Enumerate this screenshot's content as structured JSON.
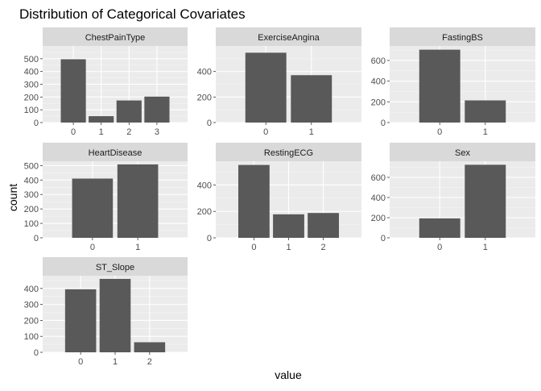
{
  "title": "Distribution of Categorical Covariates",
  "xlabel": "value",
  "ylabel": "count",
  "colors": {
    "bar": "#595959",
    "panel_bg": "#EBEBEB",
    "strip_bg": "#D9D9D9",
    "grid_major": "#FFFFFF",
    "grid_minor": "#F5F5F5",
    "text": "#4D4D4D",
    "title": "#000000"
  },
  "chart_data": [
    {
      "type": "bar",
      "title": "ChestPainType",
      "categories": [
        "0",
        "1",
        "2",
        "3"
      ],
      "values": [
        496,
        50,
        173,
        203
      ],
      "ylim": [
        0,
        600
      ],
      "yticks": [
        0,
        100,
        200,
        300,
        400,
        500
      ]
    },
    {
      "type": "bar",
      "title": "ExerciseAngina",
      "categories": [
        "0",
        "1"
      ],
      "values": [
        547,
        371
      ],
      "ylim": [
        0,
        600
      ],
      "yticks": [
        0,
        200,
        400
      ]
    },
    {
      "type": "bar",
      "title": "FastingBS",
      "categories": [
        "0",
        "1"
      ],
      "values": [
        704,
        214
      ],
      "ylim": [
        0,
        740
      ],
      "yticks": [
        0,
        200,
        400,
        600
      ]
    },
    {
      "type": "bar",
      "title": "HeartDisease",
      "categories": [
        "0",
        "1"
      ],
      "values": [
        410,
        508
      ],
      "ylim": [
        0,
        530
      ],
      "yticks": [
        0,
        100,
        200,
        300,
        400,
        500
      ]
    },
    {
      "type": "bar",
      "title": "RestingECG",
      "categories": [
        "0",
        "1",
        "2"
      ],
      "values": [
        552,
        178,
        188
      ],
      "ylim": [
        0,
        580
      ],
      "yticks": [
        0,
        200,
        400
      ]
    },
    {
      "type": "bar",
      "title": "Sex",
      "categories": [
        "0",
        "1"
      ],
      "values": [
        193,
        725
      ],
      "ylim": [
        0,
        760
      ],
      "yticks": [
        0,
        200,
        400,
        600
      ]
    },
    {
      "type": "bar",
      "title": "ST_Slope",
      "categories": [
        "0",
        "1",
        "2"
      ],
      "values": [
        395,
        460,
        63
      ],
      "ylim": [
        0,
        480
      ],
      "yticks": [
        0,
        100,
        200,
        300,
        400
      ]
    }
  ]
}
